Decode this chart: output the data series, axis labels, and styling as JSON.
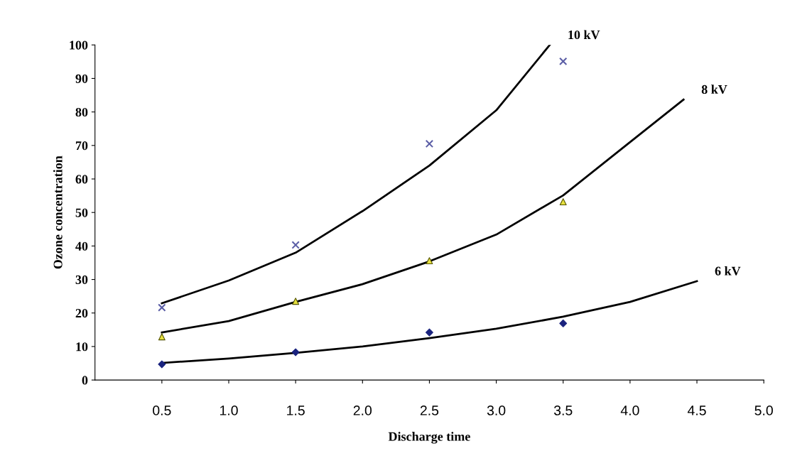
{
  "chart_data": {
    "type": "scatter",
    "xlabel": "Discharge time",
    "ylabel": "Ozone concentration",
    "xlim": [
      0,
      5
    ],
    "ylim": [
      0,
      100
    ],
    "xticks": [
      {
        "value": 0.5,
        "label": "0.5"
      },
      {
        "value": 1.0,
        "label": "1.0"
      },
      {
        "value": 1.5,
        "label": "1.5"
      },
      {
        "value": 2.0,
        "label": "2.0"
      },
      {
        "value": 2.5,
        "label": "2.5"
      },
      {
        "value": 3.0,
        "label": "3.0"
      },
      {
        "value": 3.5,
        "label": "3.5"
      },
      {
        "value": 4.0,
        "label": "4.0"
      },
      {
        "value": 4.5,
        "label": "4.5"
      },
      {
        "value": 5.0,
        "label": "5.0"
      }
    ],
    "yticks": [
      0,
      10,
      20,
      30,
      40,
      50,
      60,
      70,
      80,
      90,
      100
    ],
    "grid": false,
    "series": [
      {
        "marker": "cross",
        "color": "#5b5ea6",
        "x": [
          0.5,
          1.5,
          2.5,
          3.5
        ],
        "values": [
          21.6,
          40.3,
          70.5,
          95.1
        ]
      },
      {
        "type": "scatter",
        "marker": "triangle",
        "color": "#e6e040",
        "x": [
          0.5,
          1.5,
          2.5,
          3.5
        ],
        "values": [
          12.9,
          23.5,
          35.6,
          53.2
        ]
      },
      {
        "type": "scatter",
        "marker": "diamond",
        "color": "#1a237e",
        "x": [
          0.5,
          1.5,
          2.5,
          3.5
        ],
        "values": [
          4.7,
          8.3,
          14.2,
          16.9
        ]
      },
      {
        "type": "line",
        "name": "10 kV",
        "color": "#000000",
        "x": [
          0.5,
          1.0,
          1.5,
          2.0,
          2.5,
          3.0,
          3.4
        ],
        "values": [
          22.9,
          29.7,
          38,
          50.4,
          64,
          80.5,
          100
        ]
      },
      {
        "type": "line",
        "name": "8 kV",
        "color": "#000000",
        "x": [
          0.5,
          1.0,
          1.5,
          2.0,
          2.5,
          3.0,
          3.5,
          4.0,
          4.4
        ],
        "values": [
          14.2,
          17.6,
          23.3,
          28.6,
          35.4,
          43.4,
          55.1,
          71,
          83.7
        ]
      },
      {
        "type": "line",
        "name": "6 kV",
        "color": "#000000",
        "x": [
          0.5,
          1.0,
          1.5,
          2.0,
          2.5,
          3.0,
          3.5,
          4.0,
          4.5
        ],
        "values": [
          5.1,
          6.4,
          8.1,
          10,
          12.5,
          15.3,
          18.9,
          23.3,
          29.5
        ]
      }
    ]
  }
}
